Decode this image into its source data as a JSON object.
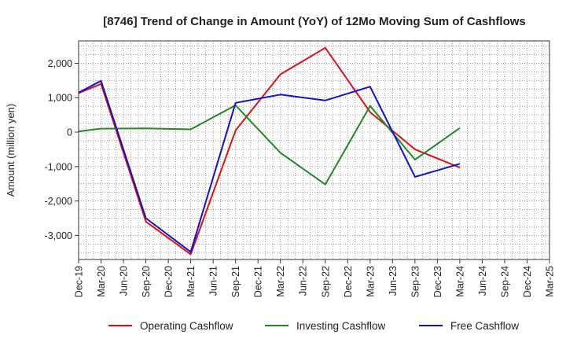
{
  "chart_data": {
    "type": "line",
    "title": "[8746]  Trend of Change in Amount (YoY) of 12Mo Moving Sum of Cashflows",
    "xlabel": "",
    "ylabel": "Amount (million yen)",
    "ylim": [
      -3700,
      2650
    ],
    "yticks": [
      2000,
      1000,
      0,
      -1000,
      -2000,
      -3000
    ],
    "ytick_labels": [
      "2,000",
      "1,000",
      "0",
      "-1,000",
      "-2,000",
      "-3,000"
    ],
    "categories": [
      "Dec-19",
      "Mar-20",
      "Jun-20",
      "Sep-20",
      "Dec-20",
      "Mar-21",
      "Jun-21",
      "Sep-21",
      "Dec-21",
      "Mar-22",
      "Jun-22",
      "Sep-22",
      "Dec-22",
      "Mar-23",
      "Jun-23",
      "Sep-23",
      "Dec-23",
      "Mar-24",
      "Jun-24",
      "Sep-24",
      "Dec-24",
      "Mar-25"
    ],
    "grid": true,
    "legend_position": "bottom",
    "series": [
      {
        "name": "Operating Cashflow",
        "color": "#dd1111",
        "values": [
          1130,
          1400,
          null,
          -2600,
          null,
          -3550,
          null,
          50,
          null,
          1680,
          null,
          2450,
          null,
          580,
          null,
          -500,
          null,
          -1030,
          null,
          null,
          null,
          null
        ]
      },
      {
        "name": "Investing Cashflow",
        "color": "#228822",
        "values": [
          20,
          100,
          null,
          110,
          null,
          80,
          null,
          780,
          null,
          -600,
          null,
          -1520,
          null,
          760,
          null,
          -800,
          null,
          120,
          null,
          null,
          null,
          null
        ]
      },
      {
        "name": "Free Cashflow",
        "color": "#1111cc",
        "values": [
          1150,
          1490,
          null,
          -2500,
          null,
          -3480,
          null,
          850,
          null,
          1090,
          null,
          920,
          null,
          1320,
          null,
          -1300,
          null,
          -920,
          null,
          null,
          null,
          null
        ]
      }
    ]
  }
}
